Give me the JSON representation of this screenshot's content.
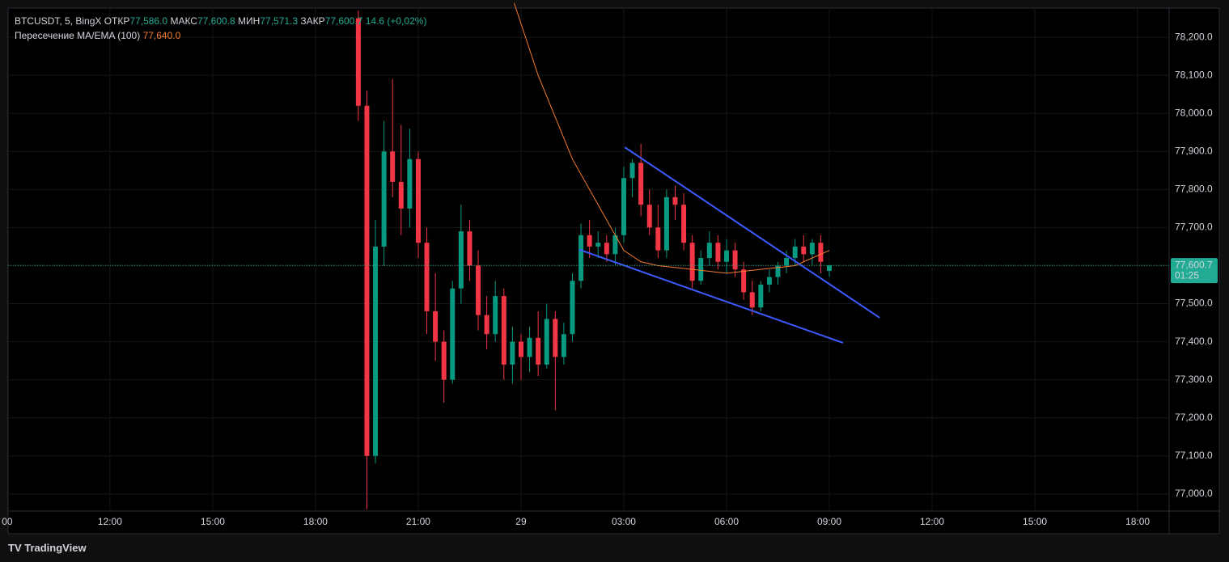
{
  "chart_data": {
    "type": "candlestick",
    "legend": {
      "symbol": "BTCUSDT, 5, BingX",
      "open_label": "ОТКР",
      "open": "77,586.0",
      "high_label": "МАКС",
      "high": "77,600.8",
      "low_label": "МИН",
      "low": "77,571.3",
      "close_label": "ЗАКР",
      "close": "77,600.7",
      "change": "14.6 (+0,02%)",
      "indicator": "Пересечение MA/EMA (100)",
      "indicator_value": "77,640.0"
    },
    "last_price": {
      "value": 77600.7,
      "label": "77,600.7",
      "timer": "01:25"
    },
    "colors": {
      "up": "#089981",
      "down": "#f23645",
      "ma": "#f57c2f",
      "trendline": "#3d5afe",
      "price_line": "#22ab94"
    },
    "xlim": [
      8.79,
      42.92
    ],
    "ylim": [
      76955,
      78298
    ],
    "grid": true,
    "xticks": [
      {
        "value": 9,
        "label": "00"
      },
      {
        "value": 12,
        "label": "12:00"
      },
      {
        "value": 15,
        "label": "15:00"
      },
      {
        "value": 18,
        "label": "18:00"
      },
      {
        "value": 21,
        "label": "21:00"
      },
      {
        "value": 24,
        "label": "29"
      },
      {
        "value": 27,
        "label": "03:00"
      },
      {
        "value": 30,
        "label": "06:00"
      },
      {
        "value": 33,
        "label": "09:00"
      },
      {
        "value": 36,
        "label": "12:00"
      },
      {
        "value": 39,
        "label": "15:00"
      },
      {
        "value": 42,
        "label": "18:00"
      }
    ],
    "yticks": [
      {
        "value": 77000,
        "label": "77,000.0"
      },
      {
        "value": 77100,
        "label": "77,100.0"
      },
      {
        "value": 77200,
        "label": "77,200.0"
      },
      {
        "value": 77300,
        "label": "77,300.0"
      },
      {
        "value": 77400,
        "label": "77,400.0"
      },
      {
        "value": 77500,
        "label": "77,500.0"
      },
      {
        "value": 77600,
        "label": "77,600.0"
      },
      {
        "value": 77700,
        "label": "77,700.0"
      },
      {
        "value": 77800,
        "label": "77,800.0"
      },
      {
        "value": 77900,
        "label": "77,900.0"
      },
      {
        "value": 78000,
        "label": "78,000.0"
      },
      {
        "value": 78100,
        "label": "78,100.0"
      },
      {
        "value": 78200,
        "label": "78,200.0"
      }
    ],
    "x": [
      19.25,
      19.5,
      19.75,
      20.0,
      20.25,
      20.5,
      20.75,
      21.0,
      21.25,
      21.5,
      21.75,
      22.0,
      22.25,
      22.5,
      22.75,
      23.0,
      23.25,
      23.5,
      23.75,
      24.0,
      24.25,
      24.5,
      24.75,
      25.0,
      25.25,
      25.5,
      25.75,
      26.0,
      26.25,
      26.5,
      26.75,
      27.0,
      27.25,
      27.5,
      27.75,
      28.0,
      28.25,
      28.5,
      28.75,
      29.0,
      29.25,
      29.5,
      29.75,
      30.0,
      30.25,
      30.5,
      30.75,
      31.0,
      31.25,
      31.5,
      31.75,
      32.0,
      32.25,
      32.5,
      32.75,
      33.0
    ],
    "open": [
      78250,
      78020,
      77100,
      77650,
      77900,
      77820,
      77750,
      77880,
      77660,
      77480,
      77400,
      77300,
      77540,
      77690,
      77600,
      77470,
      77420,
      77520,
      77340,
      77400,
      77360,
      77410,
      77340,
      77460,
      77360,
      77420,
      77560,
      77680,
      77650,
      77660,
      77630,
      77680,
      77830,
      77870,
      77760,
      77700,
      77640,
      77780,
      77760,
      77660,
      77560,
      77620,
      77660,
      77610,
      77640,
      77590,
      77530,
      77490,
      77550,
      77570,
      77600,
      77620,
      77650,
      77630,
      77660,
      77586
    ],
    "high": [
      78270,
      78060,
      77720,
      77980,
      78090,
      77970,
      77960,
      77900,
      77700,
      77580,
      77430,
      77560,
      77760,
      77720,
      77640,
      77520,
      77560,
      77540,
      77440,
      77420,
      77440,
      77480,
      77500,
      77480,
      77450,
      77580,
      77710,
      77720,
      77690,
      77680,
      77700,
      77860,
      77880,
      77920,
      77800,
      77760,
      77800,
      77810,
      77790,
      77680,
      77640,
      77690,
      77680,
      77670,
      77660,
      77610,
      77560,
      77560,
      77590,
      77610,
      77640,
      77670,
      77680,
      77670,
      77680,
      77600.8
    ],
    "low": [
      77980,
      76960,
      77080,
      77600,
      77780,
      77680,
      77700,
      77620,
      77420,
      77350,
      77240,
      77290,
      77500,
      77560,
      77430,
      77380,
      77400,
      77300,
      77290,
      77300,
      77320,
      77310,
      77330,
      77220,
      77340,
      77400,
      77540,
      77620,
      77620,
      77610,
      77600,
      77660,
      77780,
      77730,
      77680,
      77620,
      77620,
      77720,
      77640,
      77540,
      77550,
      77600,
      77590,
      77580,
      77570,
      77510,
      77470,
      77480,
      77530,
      77550,
      77580,
      77600,
      77610,
      77600,
      77580,
      77571.3
    ],
    "close": [
      78020,
      77100,
      77650,
      77900,
      77820,
      77750,
      77880,
      77660,
      77480,
      77400,
      77300,
      77540,
      77690,
      77600,
      77470,
      77420,
      77520,
      77340,
      77400,
      77360,
      77410,
      77340,
      77460,
      77360,
      77420,
      77560,
      77680,
      77650,
      77660,
      77630,
      77680,
      77830,
      77870,
      77760,
      77700,
      77640,
      77780,
      77760,
      77660,
      77560,
      77620,
      77660,
      77610,
      77640,
      77590,
      77530,
      77490,
      77550,
      77570,
      77600,
      77620,
      77650,
      77630,
      77660,
      77610,
      77600.7
    ],
    "ma": {
      "x": [
        23.8,
        24.5,
        25.5,
        26.5,
        27.0,
        27.5,
        28.0,
        29.0,
        30.0,
        31.0,
        32.0,
        33.0
      ],
      "values": [
        78290,
        78100,
        77880,
        77720,
        77640,
        77610,
        77600,
        77590,
        77580,
        77590,
        77600,
        77640
      ]
    },
    "trendlines": [
      {
        "x": [
          27.03,
          34.47
        ],
        "values": [
          77911,
          77463
        ]
      },
      {
        "x": [
          25.7,
          33.4
        ],
        "values": [
          77642,
          77397
        ]
      }
    ]
  }
}
